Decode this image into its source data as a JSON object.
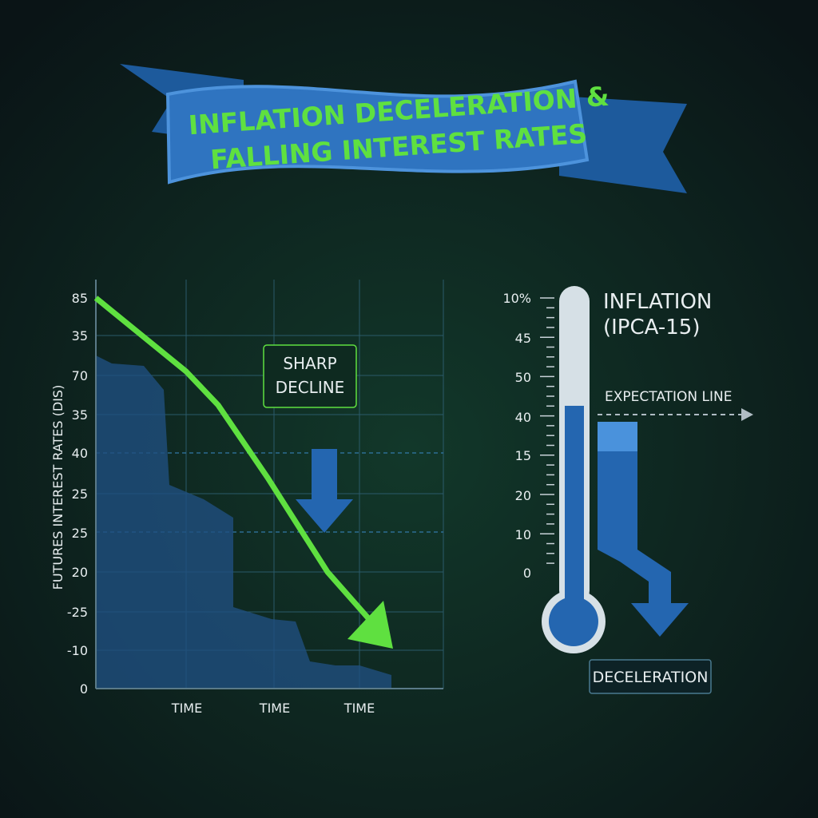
{
  "banner": {
    "title_lines": [
      "INFLATION DECELERATION &",
      "FALLING INTEREST RATES"
    ]
  },
  "left_panel": {
    "axis_title": "FUTURES INTEREST RATES  (DIS)",
    "axis_labels": [
      "85",
      "35",
      "70",
      "35",
      "40",
      "25",
      "25",
      "20",
      "-25",
      "-10",
      "0"
    ],
    "x_labels": [
      "TIME",
      "TIME",
      "TIME"
    ],
    "annotation": "SHARP DECLINE"
  },
  "right_panel": {
    "title_lines": [
      "INFLATION",
      "(IPCA-15)"
    ],
    "scale_labels": [
      "10%",
      "45",
      "50",
      "40",
      "15",
      "20",
      "10",
      "0"
    ],
    "expectation_label": "EXPECTATION LINE",
    "result_label": "DECELERATION"
  }
}
